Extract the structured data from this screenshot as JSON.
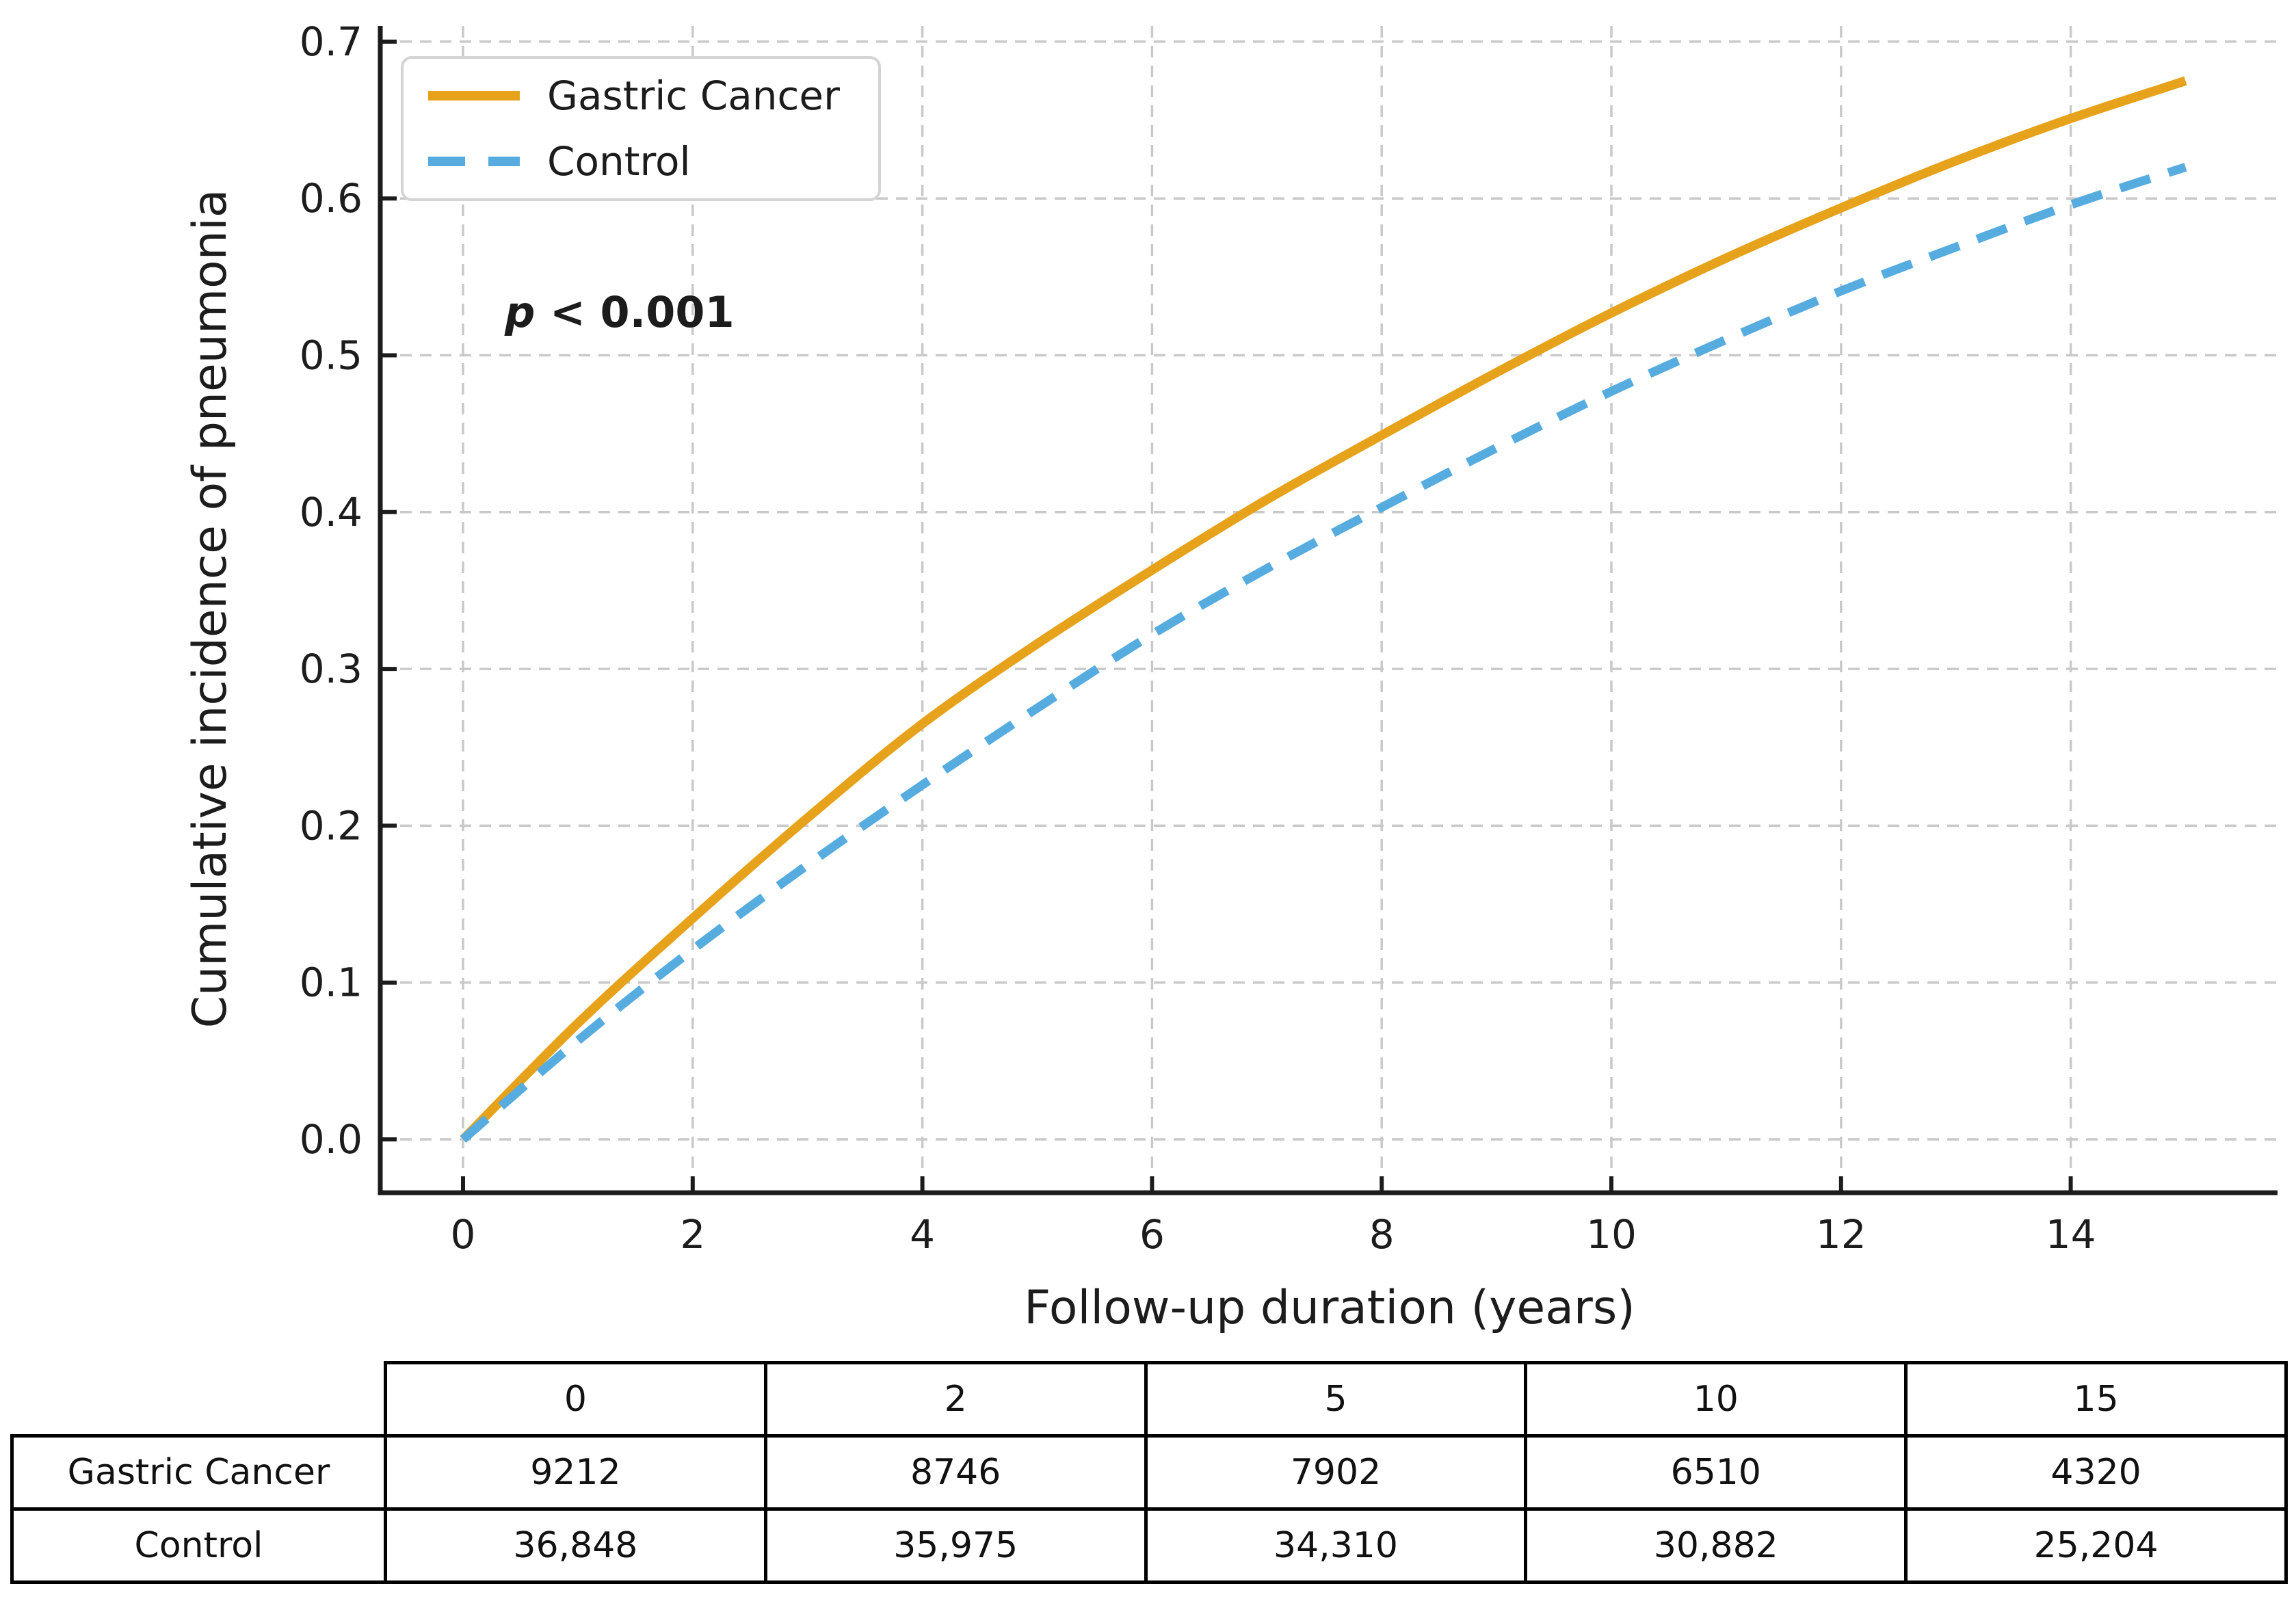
{
  "chart_data": {
    "type": "line",
    "title": "",
    "xlabel": "Follow-up duration (years)",
    "ylabel": "Cumulative incidence of pneumonia",
    "xlim": [
      -0.72,
      15.8
    ],
    "ylim": [
      -0.034,
      0.71
    ],
    "xticks": [
      0,
      2,
      4,
      6,
      8,
      10,
      12,
      14
    ],
    "yticks": [
      0.0,
      0.1,
      0.2,
      0.3,
      0.4,
      0.5,
      0.6,
      0.7
    ],
    "grid": true,
    "legend_position": "upper left",
    "x": [
      0,
      1,
      2,
      3,
      4,
      5,
      6,
      7,
      8,
      9,
      10,
      11,
      12,
      13,
      14,
      15
    ],
    "series": [
      {
        "name": "Gastric Cancer",
        "color": "#E6A21B",
        "style": "solid",
        "values": [
          0.0,
          0.074,
          0.141,
          0.205,
          0.265,
          0.316,
          0.363,
          0.408,
          0.449,
          0.489,
          0.527,
          0.562,
          0.594,
          0.624,
          0.651,
          0.675
        ]
      },
      {
        "name": "Control",
        "color": "#57ACDF",
        "style": "dashed",
        "values": [
          0.0,
          0.063,
          0.121,
          0.175,
          0.226,
          0.275,
          0.322,
          0.364,
          0.403,
          0.441,
          0.477,
          0.51,
          0.541,
          0.569,
          0.596,
          0.62
        ]
      }
    ],
    "annotation": {
      "text": "p < 0.001",
      "text_italic": "p",
      "text_rest": " < 0.001"
    }
  },
  "risk_table": {
    "corner_label": "",
    "time_points": [
      "0",
      "2",
      "5",
      "10",
      "15"
    ],
    "rows": [
      {
        "label": "Gastric Cancer",
        "values": [
          "9212",
          "8746",
          "7902",
          "6510",
          "4320"
        ]
      },
      {
        "label": "Control",
        "values": [
          "36,848",
          "35,975",
          "34,310",
          "30,882",
          "25,204"
        ]
      }
    ]
  },
  "colors": {
    "gastric_line": "#E6A21B",
    "control_line": "#57ACDF",
    "grid": "#C9C9C9",
    "spine": "#1c1c1c",
    "legend_border": "#D4D4D4",
    "background": "#ffffff"
  }
}
